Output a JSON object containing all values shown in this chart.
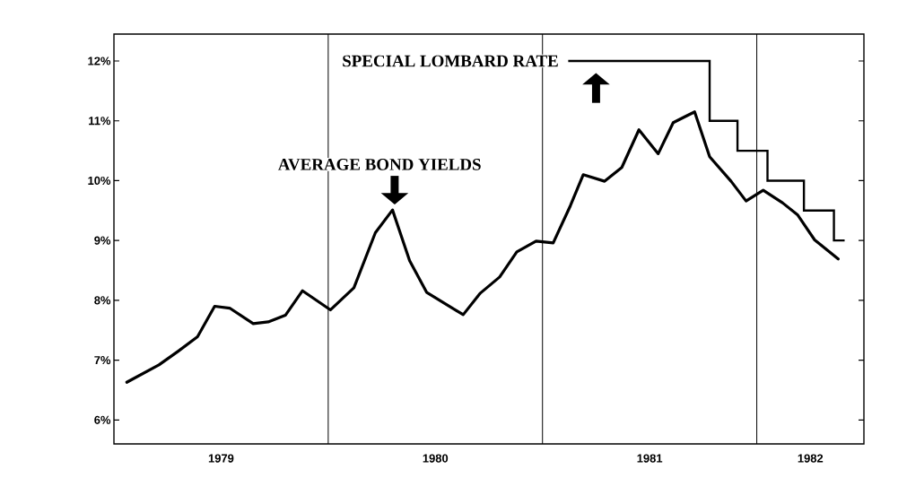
{
  "chart_data": {
    "type": "line",
    "series": [
      {
        "name": "AVERAGE BOND YIELDS",
        "color": "#000000",
        "x": [
          1979.06,
          1979.21,
          1979.3,
          1979.39,
          1979.47,
          1979.54,
          1979.65,
          1979.72,
          1979.8,
          1979.88,
          1980.01,
          1980.12,
          1980.22,
          1980.3,
          1980.38,
          1980.46,
          1980.63,
          1980.71,
          1980.8,
          1980.88,
          1980.97,
          1981.05,
          1981.13,
          1981.19,
          1981.29,
          1981.37,
          1981.45,
          1981.54,
          1981.61,
          1981.71,
          1981.78,
          1981.88,
          1981.95,
          1982.03,
          1982.12,
          1982.19,
          1982.27,
          1982.38
        ],
        "values": [
          6.63,
          6.92,
          7.15,
          7.39,
          7.9,
          7.87,
          7.61,
          7.64,
          7.75,
          8.16,
          7.84,
          8.21,
          9.13,
          9.51,
          8.66,
          8.13,
          7.76,
          8.12,
          8.39,
          8.81,
          8.99,
          8.96,
          9.58,
          10.1,
          9.99,
          10.22,
          10.85,
          10.45,
          10.97,
          11.15,
          10.4,
          9.99,
          9.66,
          9.84,
          9.63,
          9.43,
          9.01,
          8.69
        ]
      },
      {
        "name": "SPECIAL LOMBARD RATE",
        "type": "step",
        "color": "#000000",
        "x": [
          1981.12,
          1981.78,
          1981.91,
          1982.05,
          1982.22,
          1982.36,
          1982.41
        ],
        "values": [
          12,
          11,
          10.5,
          10,
          9.5,
          9,
          9
        ]
      }
    ],
    "xlim": [
      1979.0,
      1982.5
    ],
    "xticks": [
      {
        "value": 1979.5,
        "label": "1979"
      },
      {
        "value": 1980.5,
        "label": "1980"
      },
      {
        "value": 1981.5,
        "label": "1981"
      },
      {
        "value": 1982.25,
        "label": "1982"
      }
    ],
    "ylim": [
      5.6,
      12.45
    ],
    "yticks": [
      {
        "value": 6,
        "label": "6%"
      },
      {
        "value": 7,
        "label": "7%"
      },
      {
        "value": 8,
        "label": "8%"
      },
      {
        "value": 9,
        "label": "9%"
      },
      {
        "value": 10,
        "label": "10%"
      },
      {
        "value": 11,
        "label": "11%"
      },
      {
        "value": 12,
        "label": "12%"
      }
    ],
    "ref_lines": [
      {
        "axis": "x",
        "value": 1980
      },
      {
        "axis": "x",
        "value": 1981
      },
      {
        "axis": "x",
        "value": 1982
      }
    ]
  }
}
